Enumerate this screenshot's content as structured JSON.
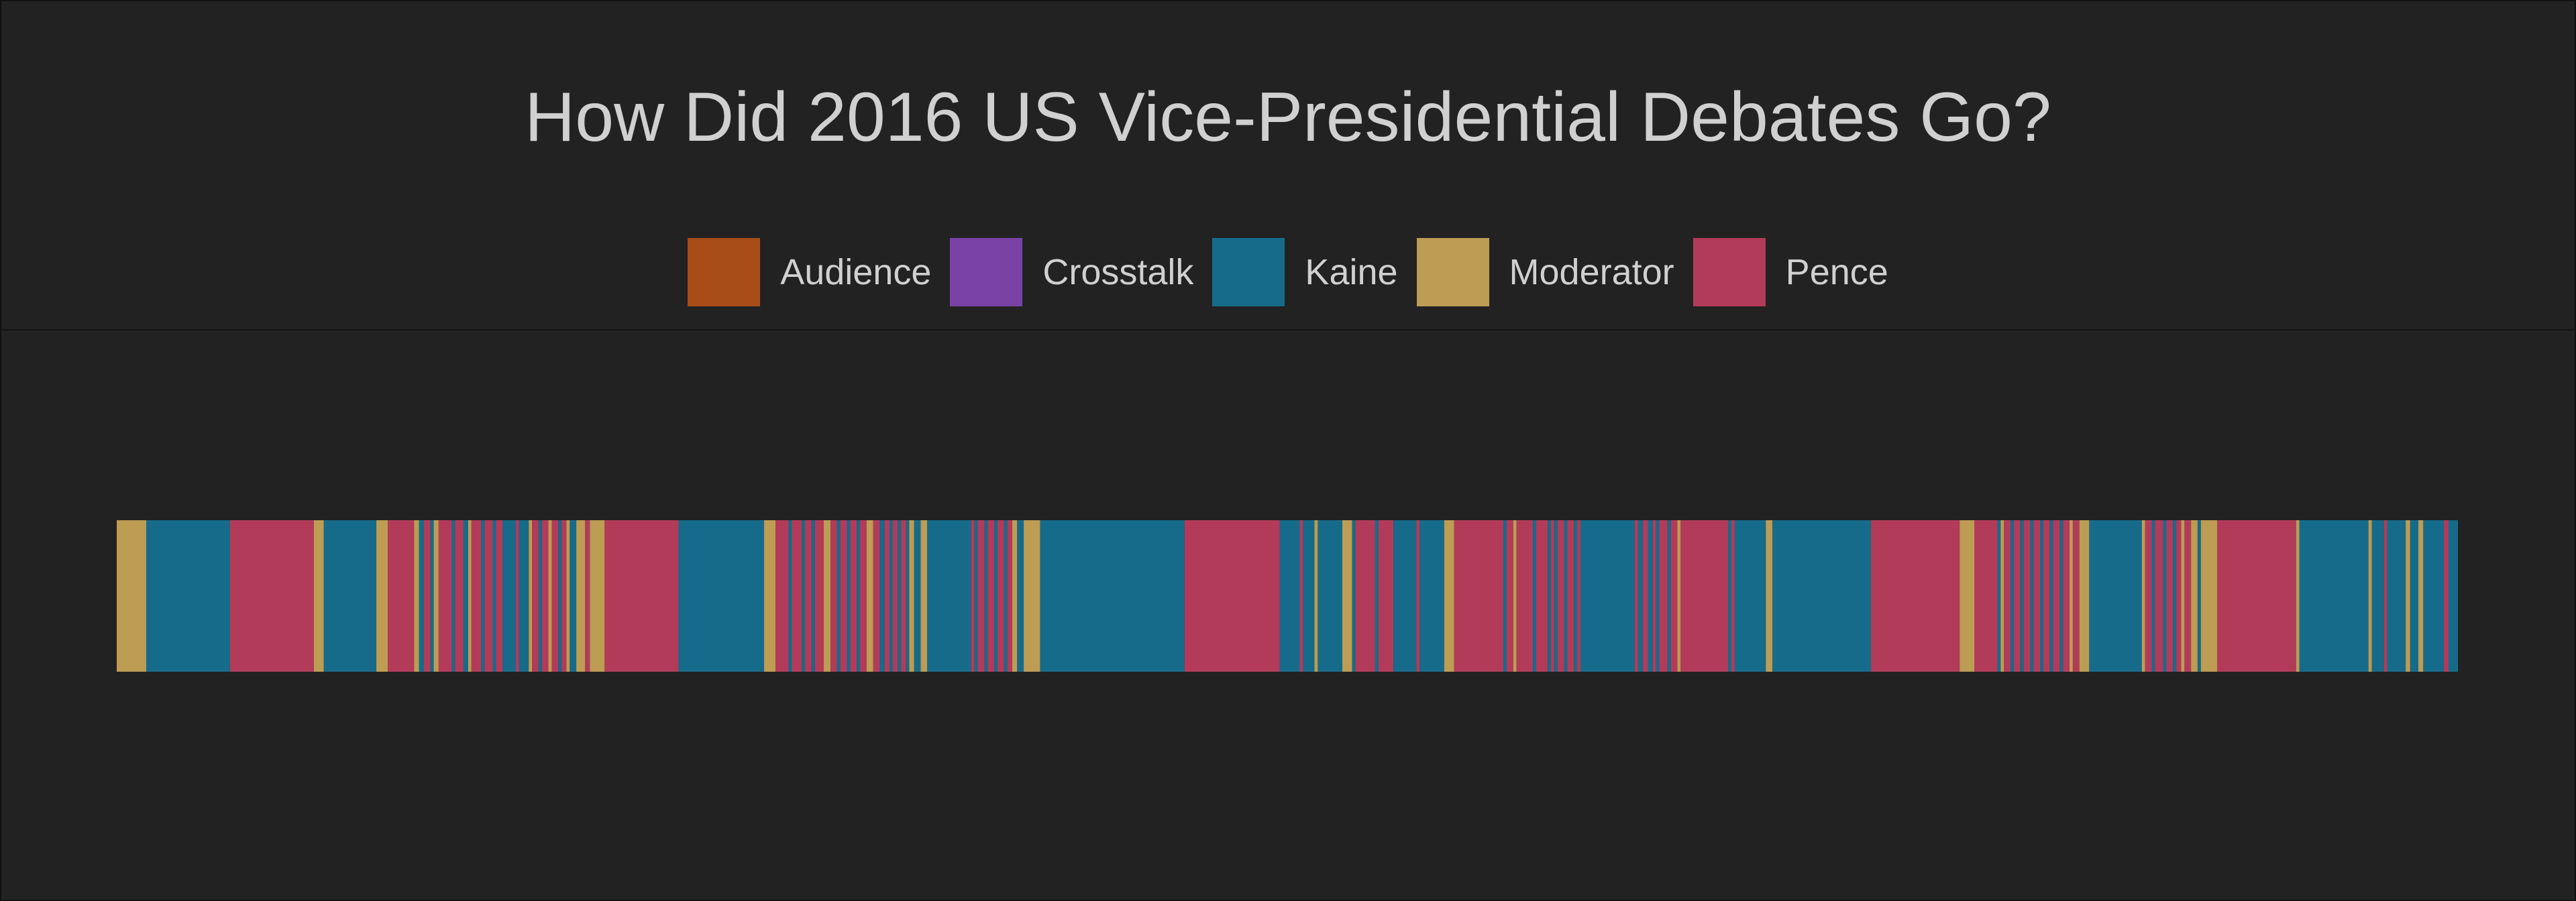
{
  "chart_data": {
    "type": "bar",
    "title": "How Did 2016 US Vice-Presidential Debates Go?",
    "orientation": "horizontal-timeline",
    "legend_position": "top-center",
    "legend": [
      {
        "name": "Audience",
        "color": "#a84d18"
      },
      {
        "name": "Crosstalk",
        "color": "#7b42a6"
      },
      {
        "name": "Kaine",
        "color": "#176b8a"
      },
      {
        "name": "Moderator",
        "color": "#bd9c53"
      },
      {
        "name": "Pence",
        "color": "#b33b5a"
      }
    ],
    "x_range": [
      0,
      1000
    ],
    "segments": [
      {
        "speaker": "Moderator",
        "start": 0.0,
        "end": 12.6
      },
      {
        "speaker": "Kaine",
        "start": 12.6,
        "end": 48.4
      },
      {
        "speaker": "Pence",
        "start": 48.4,
        "end": 84.2
      },
      {
        "speaker": "Moderator",
        "start": 84.2,
        "end": 88.4
      },
      {
        "speaker": "Kaine",
        "start": 88.4,
        "end": 110.9
      },
      {
        "speaker": "Moderator",
        "start": 110.9,
        "end": 115.8
      },
      {
        "speaker": "Pence",
        "start": 115.8,
        "end": 127.0
      },
      {
        "speaker": "Moderator",
        "start": 127.0,
        "end": 129.1
      },
      {
        "speaker": "Kaine",
        "start": 129.1,
        "end": 131.2
      },
      {
        "speaker": "Pence",
        "start": 131.2,
        "end": 134.0
      },
      {
        "speaker": "Kaine",
        "start": 134.0,
        "end": 135.4
      },
      {
        "speaker": "Moderator",
        "start": 135.4,
        "end": 137.5
      },
      {
        "speaker": "Pence",
        "start": 137.5,
        "end": 143.1
      },
      {
        "speaker": "Kaine",
        "start": 143.1,
        "end": 144.5
      },
      {
        "speaker": "Pence",
        "start": 144.5,
        "end": 148.0
      },
      {
        "speaker": "Kaine",
        "start": 148.0,
        "end": 150.1
      },
      {
        "speaker": "Moderator",
        "start": 150.1,
        "end": 151.5
      },
      {
        "speaker": "Pence",
        "start": 151.5,
        "end": 155.7
      },
      {
        "speaker": "Kaine",
        "start": 155.7,
        "end": 157.1
      },
      {
        "speaker": "Pence",
        "start": 157.1,
        "end": 160.6
      },
      {
        "speaker": "Kaine",
        "start": 160.6,
        "end": 162.0
      },
      {
        "speaker": "Pence",
        "start": 162.0,
        "end": 164.8
      },
      {
        "speaker": "Kaine",
        "start": 164.8,
        "end": 170.4
      },
      {
        "speaker": "Pence",
        "start": 170.4,
        "end": 171.8
      },
      {
        "speaker": "Kaine",
        "start": 171.8,
        "end": 176.0
      },
      {
        "speaker": "Moderator",
        "start": 176.0,
        "end": 177.4
      },
      {
        "speaker": "Pence",
        "start": 177.4,
        "end": 180.2
      },
      {
        "speaker": "Kaine",
        "start": 180.2,
        "end": 181.6
      },
      {
        "speaker": "Pence",
        "start": 181.6,
        "end": 184.4
      },
      {
        "speaker": "Moderator",
        "start": 184.4,
        "end": 185.8
      },
      {
        "speaker": "Pence",
        "start": 185.8,
        "end": 188.6
      },
      {
        "speaker": "Kaine",
        "start": 188.6,
        "end": 190.0
      },
      {
        "speaker": "Pence",
        "start": 190.0,
        "end": 192.1
      },
      {
        "speaker": "Moderator",
        "start": 192.1,
        "end": 193.5
      },
      {
        "speaker": "Kaine",
        "start": 193.5,
        "end": 196.3
      },
      {
        "speaker": "Moderator",
        "start": 196.3,
        "end": 200.0
      },
      {
        "speaker": "Pence",
        "start": 200.0,
        "end": 202.1
      },
      {
        "speaker": "Moderator",
        "start": 202.1,
        "end": 208.4
      },
      {
        "speaker": "Pence",
        "start": 208.4,
        "end": 240.0
      },
      {
        "speaker": "Kaine",
        "start": 240.0,
        "end": 276.5
      },
      {
        "speaker": "Moderator",
        "start": 276.5,
        "end": 281.4
      },
      {
        "speaker": "Pence",
        "start": 281.4,
        "end": 287.0
      },
      {
        "speaker": "Kaine",
        "start": 287.0,
        "end": 288.4
      },
      {
        "speaker": "Pence",
        "start": 288.4,
        "end": 292.6
      },
      {
        "speaker": "Kaine",
        "start": 292.6,
        "end": 294.0
      },
      {
        "speaker": "Pence",
        "start": 294.0,
        "end": 296.8
      },
      {
        "speaker": "Kaine",
        "start": 296.8,
        "end": 298.2
      },
      {
        "speaker": "Pence",
        "start": 298.2,
        "end": 302.0
      },
      {
        "speaker": "Moderator",
        "start": 302.0,
        "end": 304.9
      },
      {
        "speaker": "Pence",
        "start": 304.9,
        "end": 307.7
      },
      {
        "speaker": "Kaine",
        "start": 307.7,
        "end": 309.1
      },
      {
        "speaker": "Pence",
        "start": 309.1,
        "end": 311.9
      },
      {
        "speaker": "Kaine",
        "start": 311.9,
        "end": 313.3
      },
      {
        "speaker": "Pence",
        "start": 313.3,
        "end": 316.1
      },
      {
        "speaker": "Kaine",
        "start": 316.1,
        "end": 317.5
      },
      {
        "speaker": "Pence",
        "start": 317.5,
        "end": 320.3
      },
      {
        "speaker": "Moderator",
        "start": 320.3,
        "end": 323.1
      },
      {
        "speaker": "Pence",
        "start": 323.1,
        "end": 325.9
      },
      {
        "speaker": "Kaine",
        "start": 325.9,
        "end": 328.0
      },
      {
        "speaker": "Pence",
        "start": 328.0,
        "end": 330.1
      },
      {
        "speaker": "Kaine",
        "start": 330.1,
        "end": 331.5
      },
      {
        "speaker": "Pence",
        "start": 331.5,
        "end": 333.6
      },
      {
        "speaker": "Kaine",
        "start": 333.6,
        "end": 335.0
      },
      {
        "speaker": "Pence",
        "start": 335.0,
        "end": 337.1
      },
      {
        "speaker": "Kaine",
        "start": 337.1,
        "end": 338.5
      },
      {
        "speaker": "Moderator",
        "start": 338.5,
        "end": 340.6
      },
      {
        "speaker": "Kaine",
        "start": 340.6,
        "end": 343.4
      },
      {
        "speaker": "Moderator",
        "start": 343.4,
        "end": 346.2
      },
      {
        "speaker": "Kaine",
        "start": 346.2,
        "end": 365.0
      },
      {
        "speaker": "Pence",
        "start": 365.0,
        "end": 366.4
      },
      {
        "speaker": "Kaine",
        "start": 366.4,
        "end": 367.8
      },
      {
        "speaker": "Pence",
        "start": 367.8,
        "end": 370.6
      },
      {
        "speaker": "Kaine",
        "start": 370.6,
        "end": 372.0
      },
      {
        "speaker": "Pence",
        "start": 372.0,
        "end": 374.8
      },
      {
        "speaker": "Kaine",
        "start": 374.8,
        "end": 376.2
      },
      {
        "speaker": "Pence",
        "start": 376.2,
        "end": 379.0
      },
      {
        "speaker": "Kaine",
        "start": 379.0,
        "end": 380.4
      },
      {
        "speaker": "Pence",
        "start": 380.4,
        "end": 382.5
      },
      {
        "speaker": "Moderator",
        "start": 382.5,
        "end": 384.6
      },
      {
        "speaker": "Kaine",
        "start": 384.6,
        "end": 387.4
      },
      {
        "speaker": "Moderator",
        "start": 387.4,
        "end": 394.4
      },
      {
        "speaker": "Kaine",
        "start": 394.4,
        "end": 456.1
      },
      {
        "speaker": "Pence",
        "start": 456.1,
        "end": 496.8
      },
      {
        "speaker": "Kaine",
        "start": 496.8,
        "end": 505.3
      },
      {
        "speaker": "Pence",
        "start": 505.3,
        "end": 506.7
      },
      {
        "speaker": "Kaine",
        "start": 506.7,
        "end": 511.6
      },
      {
        "speaker": "Moderator",
        "start": 511.6,
        "end": 513.0
      },
      {
        "speaker": "Kaine",
        "start": 513.0,
        "end": 523.5
      },
      {
        "speaker": "Moderator",
        "start": 523.5,
        "end": 527.7
      },
      {
        "speaker": "Kaine",
        "start": 527.7,
        "end": 529.1
      },
      {
        "speaker": "Pence",
        "start": 529.1,
        "end": 537.5
      },
      {
        "speaker": "Kaine",
        "start": 537.5,
        "end": 538.9
      },
      {
        "speaker": "Pence",
        "start": 538.9,
        "end": 545.3
      },
      {
        "speaker": "Kaine",
        "start": 545.3,
        "end": 555.1
      },
      {
        "speaker": "Pence",
        "start": 555.1,
        "end": 556.5
      },
      {
        "speaker": "Kaine",
        "start": 556.5,
        "end": 567.0
      },
      {
        "speaker": "Moderator",
        "start": 567.0,
        "end": 571.2
      },
      {
        "speaker": "Pence",
        "start": 571.2,
        "end": 592.3
      },
      {
        "speaker": "Kaine",
        "start": 592.3,
        "end": 593.7
      },
      {
        "speaker": "Pence",
        "start": 593.7,
        "end": 596.5
      },
      {
        "speaker": "Moderator",
        "start": 596.5,
        "end": 597.9
      },
      {
        "speaker": "Pence",
        "start": 597.9,
        "end": 604.9
      },
      {
        "speaker": "Kaine",
        "start": 604.9,
        "end": 606.3
      },
      {
        "speaker": "Pence",
        "start": 606.3,
        "end": 611.2
      },
      {
        "speaker": "Kaine",
        "start": 611.2,
        "end": 612.6
      },
      {
        "speaker": "Pence",
        "start": 612.6,
        "end": 614.0
      },
      {
        "speaker": "Kaine",
        "start": 614.0,
        "end": 615.4
      },
      {
        "speaker": "Pence",
        "start": 615.4,
        "end": 618.2
      },
      {
        "speaker": "Kaine",
        "start": 618.2,
        "end": 619.6
      },
      {
        "speaker": "Pence",
        "start": 619.6,
        "end": 622.4
      },
      {
        "speaker": "Kaine",
        "start": 622.4,
        "end": 623.8
      },
      {
        "speaker": "Pence",
        "start": 623.8,
        "end": 625.2
      },
      {
        "speaker": "Kaine",
        "start": 625.2,
        "end": 648.4
      },
      {
        "speaker": "Pence",
        "start": 648.4,
        "end": 649.8
      },
      {
        "speaker": "Kaine",
        "start": 649.8,
        "end": 651.9
      },
      {
        "speaker": "Pence",
        "start": 651.9,
        "end": 654.0
      },
      {
        "speaker": "Kaine",
        "start": 654.0,
        "end": 656.1
      },
      {
        "speaker": "Pence",
        "start": 656.1,
        "end": 657.5
      },
      {
        "speaker": "Kaine",
        "start": 657.5,
        "end": 658.9
      },
      {
        "speaker": "Pence",
        "start": 658.9,
        "end": 662.4
      },
      {
        "speaker": "Kaine",
        "start": 662.4,
        "end": 663.8
      },
      {
        "speaker": "Pence",
        "start": 663.8,
        "end": 666.6
      },
      {
        "speaker": "Moderator",
        "start": 666.6,
        "end": 668.0
      },
      {
        "speaker": "Pence",
        "start": 668.0,
        "end": 688.3
      },
      {
        "speaker": "Kaine",
        "start": 688.3,
        "end": 689.7
      },
      {
        "speaker": "Pence",
        "start": 689.7,
        "end": 691.1
      },
      {
        "speaker": "Kaine",
        "start": 691.1,
        "end": 704.4
      },
      {
        "speaker": "Moderator",
        "start": 704.4,
        "end": 707.2
      },
      {
        "speaker": "Kaine",
        "start": 707.2,
        "end": 749.3
      },
      {
        "speaker": "Pence",
        "start": 749.3,
        "end": 787.2
      },
      {
        "speaker": "Moderator",
        "start": 787.2,
        "end": 793.5
      },
      {
        "speaker": "Pence",
        "start": 793.5,
        "end": 803.3
      },
      {
        "speaker": "Kaine",
        "start": 803.3,
        "end": 804.7
      },
      {
        "speaker": "Moderator",
        "start": 804.7,
        "end": 806.1
      },
      {
        "speaker": "Pence",
        "start": 806.1,
        "end": 808.9
      },
      {
        "speaker": "Kaine",
        "start": 808.9,
        "end": 810.3
      },
      {
        "speaker": "Pence",
        "start": 810.3,
        "end": 813.1
      },
      {
        "speaker": "Kaine",
        "start": 813.1,
        "end": 814.5
      },
      {
        "speaker": "Pence",
        "start": 814.5,
        "end": 817.3
      },
      {
        "speaker": "Kaine",
        "start": 817.3,
        "end": 818.7
      },
      {
        "speaker": "Pence",
        "start": 818.7,
        "end": 821.5
      },
      {
        "speaker": "Kaine",
        "start": 821.5,
        "end": 822.9
      },
      {
        "speaker": "Pence",
        "start": 822.9,
        "end": 825.7
      },
      {
        "speaker": "Kaine",
        "start": 825.7,
        "end": 827.1
      },
      {
        "speaker": "Pence",
        "start": 827.1,
        "end": 829.9
      },
      {
        "speaker": "Kaine",
        "start": 829.9,
        "end": 831.3
      },
      {
        "speaker": "Pence",
        "start": 831.3,
        "end": 834.1
      },
      {
        "speaker": "Moderator",
        "start": 834.1,
        "end": 835.5
      },
      {
        "speaker": "Pence",
        "start": 835.5,
        "end": 838.3
      },
      {
        "speaker": "Moderator",
        "start": 838.3,
        "end": 842.5
      },
      {
        "speaker": "Kaine",
        "start": 842.5,
        "end": 865.0
      },
      {
        "speaker": "Moderator",
        "start": 865.0,
        "end": 866.4
      },
      {
        "speaker": "Pence",
        "start": 866.4,
        "end": 869.2
      },
      {
        "speaker": "Kaine",
        "start": 869.2,
        "end": 870.6
      },
      {
        "speaker": "Pence",
        "start": 870.6,
        "end": 874.1
      },
      {
        "speaker": "Kaine",
        "start": 874.1,
        "end": 875.5
      },
      {
        "speaker": "Pence",
        "start": 875.5,
        "end": 878.3
      },
      {
        "speaker": "Kaine",
        "start": 878.3,
        "end": 879.7
      },
      {
        "speaker": "Pence",
        "start": 879.7,
        "end": 881.8
      },
      {
        "speaker": "Moderator",
        "start": 881.8,
        "end": 883.2
      },
      {
        "speaker": "Pence",
        "start": 883.2,
        "end": 886.0
      },
      {
        "speaker": "Moderator",
        "start": 886.0,
        "end": 888.8
      },
      {
        "speaker": "Kaine",
        "start": 888.8,
        "end": 890.2
      },
      {
        "speaker": "Moderator",
        "start": 890.2,
        "end": 897.2
      },
      {
        "speaker": "Pence",
        "start": 897.2,
        "end": 930.9
      },
      {
        "speaker": "Moderator",
        "start": 930.9,
        "end": 932.3
      },
      {
        "speaker": "Kaine",
        "start": 932.3,
        "end": 961.8
      },
      {
        "speaker": "Moderator",
        "start": 961.8,
        "end": 963.2
      },
      {
        "speaker": "Kaine",
        "start": 963.2,
        "end": 968.4
      },
      {
        "speaker": "Pence",
        "start": 968.4,
        "end": 969.8
      },
      {
        "speaker": "Kaine",
        "start": 969.8,
        "end": 977.7
      },
      {
        "speaker": "Moderator",
        "start": 977.7,
        "end": 979.6
      },
      {
        "speaker": "Kaine",
        "start": 979.6,
        "end": 983.1
      },
      {
        "speaker": "Moderator",
        "start": 983.1,
        "end": 985.2
      },
      {
        "speaker": "Kaine",
        "start": 985.2,
        "end": 994.0
      },
      {
        "speaker": "Pence",
        "start": 994.0,
        "end": 996.0
      },
      {
        "speaker": "Kaine",
        "start": 996.0,
        "end": 1000.0
      }
    ]
  }
}
